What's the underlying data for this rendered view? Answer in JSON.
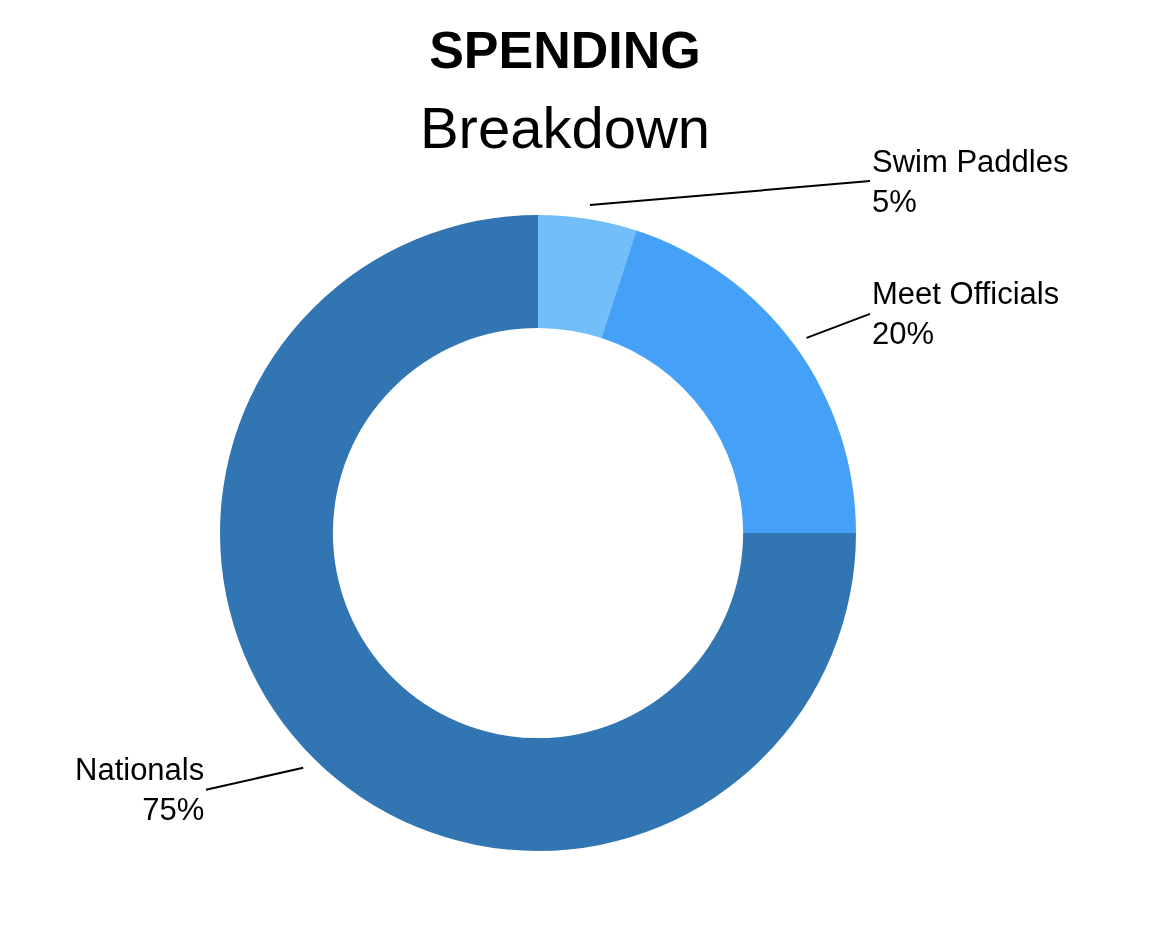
{
  "chart_data": {
    "type": "donut",
    "title": "SPENDING",
    "subtitle": "Breakdown",
    "categories": [
      "Swim Paddles",
      "Meet Officials",
      "Nationals"
    ],
    "values": [
      5,
      20,
      75
    ],
    "colors": [
      "#72bef9",
      "#45a1f7",
      "#3176b3"
    ],
    "value_labels": [
      "5%",
      "20%",
      "75%"
    ],
    "legend": false
  }
}
